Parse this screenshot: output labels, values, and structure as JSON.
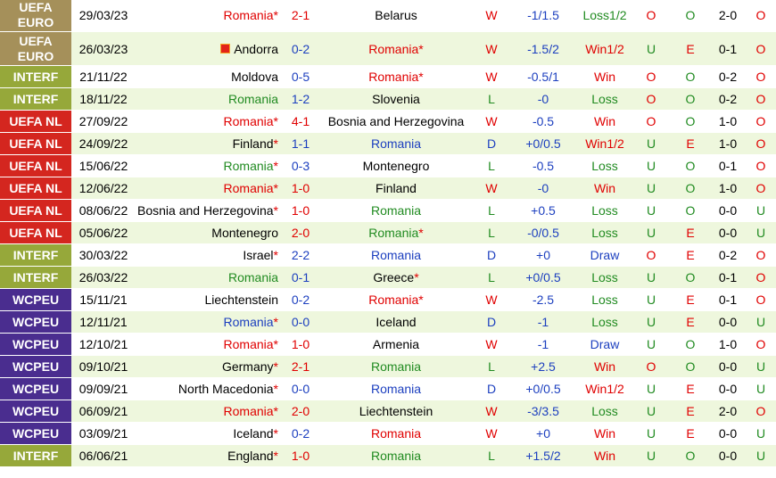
{
  "colors": {
    "uefa_euro": "#a5905a",
    "interf": "#96a83a",
    "uefa_nl": "#d4261f",
    "wcpeu": "#4a2d8f",
    "result_win": "#e00000",
    "result_draw": "#1c3fbf",
    "result_loss": "#218b21"
  },
  "header_fragments": [
    "O",
    "U",
    "O",
    "E",
    "O"
  ],
  "matches": [
    {
      "comp": "UEFA EURO",
      "comp_key": "uefa_euro",
      "date": "29/03/23",
      "home": "Romania",
      "home_star": true,
      "home_hl": true,
      "home_color": "red",
      "score": "2-1",
      "away": "Belarus",
      "away_star": false,
      "away_color": "black",
      "result": "W",
      "result_key": "win",
      "handicap": "-1/1.5",
      "bet": "Loss1/2",
      "bet_key": "loss",
      "ou": "O",
      "ou_key": "o",
      "oe": "O",
      "oe_key": "o",
      "ht": "2-0",
      "ht_ou": "O",
      "ht_ou_key": "o"
    },
    {
      "comp": "UEFA EURO",
      "comp_key": "uefa_euro",
      "date": "26/03/23",
      "home": "Andorra",
      "home_flag": true,
      "home_star": false,
      "home_color": "black",
      "score": "0-2",
      "score_key": "draw",
      "away": "Romania",
      "away_star": true,
      "away_color": "red",
      "result": "W",
      "result_key": "win",
      "handicap": "-1.5/2",
      "bet": "Win1/2",
      "bet_key": "win",
      "ou": "U",
      "ou_key": "u",
      "oe": "E",
      "oe_key": "e",
      "ht": "0-1",
      "ht_ou": "O",
      "ht_ou_key": "o"
    },
    {
      "comp": "INTERF",
      "comp_key": "interf",
      "date": "21/11/22",
      "home": "Moldova",
      "home_star": false,
      "home_color": "black",
      "score": "0-5",
      "score_key": "draw",
      "away": "Romania",
      "away_star": true,
      "away_color": "red",
      "result": "W",
      "result_key": "win",
      "handicap": "-0.5/1",
      "bet": "Win",
      "bet_key": "win",
      "ou": "O",
      "ou_key": "o",
      "oe": "O",
      "oe_key": "o",
      "ht": "0-2",
      "ht_ou": "O",
      "ht_ou_key": "o"
    },
    {
      "comp": "INTERF",
      "comp_key": "interf",
      "date": "18/11/22",
      "home": "Romania",
      "home_star": false,
      "home_color": "green",
      "score": "1-2",
      "score_key": "draw",
      "away": "Slovenia",
      "away_star": false,
      "away_color": "black",
      "result": "L",
      "result_key": "loss",
      "handicap": "-0",
      "bet": "Loss",
      "bet_key": "loss",
      "ou": "O",
      "ou_key": "o",
      "oe": "O",
      "oe_key": "o",
      "ht": "0-2",
      "ht_ou": "O",
      "ht_ou_key": "o"
    },
    {
      "comp": "UEFA NL",
      "comp_key": "uefa_nl",
      "date": "27/09/22",
      "home": "Romania",
      "home_star": true,
      "home_color": "red",
      "score": "4-1",
      "away": "Bosnia and Herzegovina",
      "away_star": false,
      "away_color": "black",
      "result": "W",
      "result_key": "win",
      "handicap": "-0.5",
      "bet": "Win",
      "bet_key": "win",
      "ou": "O",
      "ou_key": "o",
      "oe": "O",
      "oe_key": "o",
      "ht": "1-0",
      "ht_ou": "O",
      "ht_ou_key": "o"
    },
    {
      "comp": "UEFA NL",
      "comp_key": "uefa_nl",
      "date": "24/09/22",
      "home": "Finland",
      "home_star": true,
      "home_color": "black",
      "score": "1-1",
      "score_key": "draw",
      "away": "Romania",
      "away_star": false,
      "away_color": "blue",
      "result": "D",
      "result_key": "draw",
      "handicap": "+0/0.5",
      "bet": "Win1/2",
      "bet_key": "win",
      "ou": "U",
      "ou_key": "u",
      "oe": "E",
      "oe_key": "e",
      "ht": "1-0",
      "ht_ou": "O",
      "ht_ou_key": "o"
    },
    {
      "comp": "UEFA NL",
      "comp_key": "uefa_nl",
      "date": "15/06/22",
      "home": "Romania",
      "home_star": true,
      "home_color": "green",
      "score": "0-3",
      "score_key": "draw",
      "away": "Montenegro",
      "away_star": false,
      "away_color": "black",
      "result": "L",
      "result_key": "loss",
      "handicap": "-0.5",
      "bet": "Loss",
      "bet_key": "loss",
      "ou": "U",
      "ou_key": "u",
      "oe": "O",
      "oe_key": "o",
      "ht": "0-1",
      "ht_ou": "O",
      "ht_ou_key": "o"
    },
    {
      "comp": "UEFA NL",
      "comp_key": "uefa_nl",
      "date": "12/06/22",
      "home": "Romania",
      "home_star": true,
      "home_color": "red",
      "score": "1-0",
      "away": "Finland",
      "away_star": false,
      "away_color": "black",
      "result": "W",
      "result_key": "win",
      "handicap": "-0",
      "bet": "Win",
      "bet_key": "win",
      "ou": "U",
      "ou_key": "u",
      "oe": "O",
      "oe_key": "o",
      "ht": "1-0",
      "ht_ou": "O",
      "ht_ou_key": "o"
    },
    {
      "comp": "UEFA NL",
      "comp_key": "uefa_nl",
      "date": "08/06/22",
      "home": "Bosnia and Herzegovina",
      "home_star": true,
      "home_color": "black",
      "score": "1-0",
      "away": "Romania",
      "away_star": false,
      "away_color": "green",
      "result": "L",
      "result_key": "loss",
      "handicap": "+0.5",
      "bet": "Loss",
      "bet_key": "loss",
      "ou": "U",
      "ou_key": "u",
      "oe": "O",
      "oe_key": "o",
      "ht": "0-0",
      "ht_ou": "U",
      "ht_ou_key": "u"
    },
    {
      "comp": "UEFA NL",
      "comp_key": "uefa_nl",
      "date": "05/06/22",
      "home": "Montenegro",
      "home_star": false,
      "home_color": "black",
      "score": "2-0",
      "away": "Romania",
      "away_star": true,
      "away_color": "green",
      "result": "L",
      "result_key": "loss",
      "handicap": "-0/0.5",
      "bet": "Loss",
      "bet_key": "loss",
      "ou": "U",
      "ou_key": "u",
      "oe": "E",
      "oe_key": "e",
      "ht": "0-0",
      "ht_ou": "U",
      "ht_ou_key": "u"
    },
    {
      "comp": "INTERF",
      "comp_key": "interf",
      "date": "30/03/22",
      "home": "Israel",
      "home_star": true,
      "home_color": "black",
      "score": "2-2",
      "score_key": "draw",
      "away": "Romania",
      "away_star": false,
      "away_color": "blue",
      "result": "D",
      "result_key": "draw",
      "handicap": "+0",
      "bet": "Draw",
      "bet_key": "draw",
      "ou": "O",
      "ou_key": "o",
      "oe": "E",
      "oe_key": "e",
      "ht": "0-2",
      "ht_ou": "O",
      "ht_ou_key": "o"
    },
    {
      "comp": "INTERF",
      "comp_key": "interf",
      "date": "26/03/22",
      "home": "Romania",
      "home_star": false,
      "home_color": "green",
      "score": "0-1",
      "score_key": "draw",
      "away": "Greece",
      "away_star": true,
      "away_color": "black",
      "result": "L",
      "result_key": "loss",
      "handicap": "+0/0.5",
      "bet": "Loss",
      "bet_key": "loss",
      "ou": "U",
      "ou_key": "u",
      "oe": "O",
      "oe_key": "o",
      "ht": "0-1",
      "ht_ou": "O",
      "ht_ou_key": "o"
    },
    {
      "comp": "WCPEU",
      "comp_key": "wcpeu",
      "date": "15/11/21",
      "home": "Liechtenstein",
      "home_star": false,
      "home_color": "black",
      "score": "0-2",
      "score_key": "draw",
      "away": "Romania",
      "away_star": true,
      "away_color": "red",
      "result": "W",
      "result_key": "win",
      "handicap": "-2.5",
      "bet": "Loss",
      "bet_key": "loss",
      "ou": "U",
      "ou_key": "u",
      "oe": "E",
      "oe_key": "e",
      "ht": "0-1",
      "ht_ou": "O",
      "ht_ou_key": "o"
    },
    {
      "comp": "WCPEU",
      "comp_key": "wcpeu",
      "date": "12/11/21",
      "home": "Romania",
      "home_star": true,
      "home_color": "blue",
      "score": "0-0",
      "score_key": "draw",
      "away": "Iceland",
      "away_star": false,
      "away_color": "black",
      "result": "D",
      "result_key": "draw",
      "handicap": "-1",
      "bet": "Loss",
      "bet_key": "loss",
      "ou": "U",
      "ou_key": "u",
      "oe": "E",
      "oe_key": "e",
      "ht": "0-0",
      "ht_ou": "U",
      "ht_ou_key": "u"
    },
    {
      "comp": "WCPEU",
      "comp_key": "wcpeu",
      "date": "12/10/21",
      "home": "Romania",
      "home_star": true,
      "home_color": "red",
      "score": "1-0",
      "away": "Armenia",
      "away_star": false,
      "away_color": "black",
      "result": "W",
      "result_key": "win",
      "handicap": "-1",
      "bet": "Draw",
      "bet_key": "draw",
      "ou": "U",
      "ou_key": "u",
      "oe": "O",
      "oe_key": "o",
      "ht": "1-0",
      "ht_ou": "O",
      "ht_ou_key": "o"
    },
    {
      "comp": "WCPEU",
      "comp_key": "wcpeu",
      "date": "09/10/21",
      "home": "Germany",
      "home_star": true,
      "home_color": "black",
      "score": "2-1",
      "away": "Romania",
      "away_star": false,
      "away_color": "green",
      "result": "L",
      "result_key": "loss",
      "handicap": "+2.5",
      "bet": "Win",
      "bet_key": "win",
      "ou": "O",
      "ou_key": "o",
      "oe": "O",
      "oe_key": "o",
      "ht": "0-0",
      "ht_ou": "U",
      "ht_ou_key": "u"
    },
    {
      "comp": "WCPEU",
      "comp_key": "wcpeu",
      "date": "09/09/21",
      "home": "North Macedonia",
      "home_star": true,
      "home_color": "black",
      "score": "0-0",
      "score_key": "draw",
      "away": "Romania",
      "away_star": false,
      "away_color": "blue",
      "result": "D",
      "result_key": "draw",
      "handicap": "+0/0.5",
      "bet": "Win1/2",
      "bet_key": "win",
      "ou": "U",
      "ou_key": "u",
      "oe": "E",
      "oe_key": "e",
      "ht": "0-0",
      "ht_ou": "U",
      "ht_ou_key": "u"
    },
    {
      "comp": "WCPEU",
      "comp_key": "wcpeu",
      "date": "06/09/21",
      "home": "Romania",
      "home_star": true,
      "home_color": "red",
      "score": "2-0",
      "away": "Liechtenstein",
      "away_star": false,
      "away_color": "black",
      "result": "W",
      "result_key": "win",
      "handicap": "-3/3.5",
      "bet": "Loss",
      "bet_key": "loss",
      "ou": "U",
      "ou_key": "u",
      "oe": "E",
      "oe_key": "e",
      "ht": "2-0",
      "ht_ou": "O",
      "ht_ou_key": "o"
    },
    {
      "comp": "WCPEU",
      "comp_key": "wcpeu",
      "date": "03/09/21",
      "home": "Iceland",
      "home_star": true,
      "home_color": "black",
      "score": "0-2",
      "score_key": "draw",
      "away": "Romania",
      "away_star": false,
      "away_color": "red",
      "result": "W",
      "result_key": "win",
      "handicap": "+0",
      "bet": "Win",
      "bet_key": "win",
      "ou": "U",
      "ou_key": "u",
      "oe": "E",
      "oe_key": "e",
      "ht": "0-0",
      "ht_ou": "U",
      "ht_ou_key": "u"
    },
    {
      "comp": "INTERF",
      "comp_key": "interf",
      "date": "06/06/21",
      "home": "England",
      "home_star": true,
      "home_color": "black",
      "score": "1-0",
      "away": "Romania",
      "away_star": false,
      "away_color": "green",
      "result": "L",
      "result_key": "loss",
      "handicap": "+1.5/2",
      "bet": "Win",
      "bet_key": "win",
      "ou": "U",
      "ou_key": "u",
      "oe": "O",
      "oe_key": "o",
      "ht": "0-0",
      "ht_ou": "U",
      "ht_ou_key": "u"
    }
  ]
}
